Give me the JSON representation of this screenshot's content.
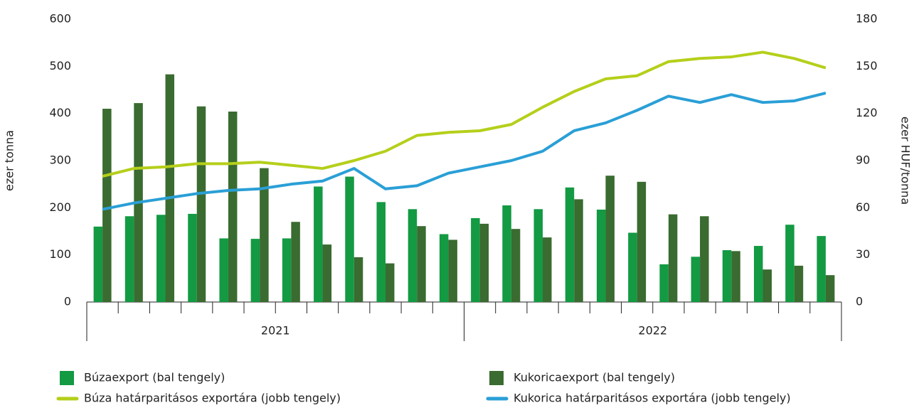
{
  "chart_data": {
    "type": "bar-line",
    "categories": [
      null,
      null,
      null,
      null,
      null,
      null,
      null,
      null,
      null,
      null,
      null,
      null,
      null,
      null,
      null,
      null,
      null,
      null,
      null,
      null,
      null,
      null,
      null,
      null
    ],
    "x_groups": [
      "2021",
      "2022"
    ],
    "ylabel": "ezer tonna",
    "y2label": "ezer HUF/tonna",
    "ylim": [
      0,
      600
    ],
    "yticks": [
      0,
      100,
      200,
      300,
      400,
      500,
      600
    ],
    "y2lim": [
      0,
      180
    ],
    "y2ticks": [
      0,
      30,
      60,
      90,
      120,
      150,
      180
    ],
    "grid": false,
    "series": [
      {
        "name": "Búzaexport (bal tengely)",
        "type": "bar",
        "axis": "y",
        "color": "#139a43",
        "values": [
          160,
          182,
          185,
          187,
          135,
          134,
          135,
          245,
          266,
          212,
          197,
          144,
          178,
          205,
          197,
          243,
          196,
          147,
          80,
          96,
          110,
          119,
          164,
          140
        ]
      },
      {
        "name": "Kukoricaexport (bal tengely)",
        "type": "bar",
        "axis": "y",
        "color": "#3a6b30",
        "values": [
          410,
          422,
          483,
          415,
          404,
          284,
          170,
          122,
          95,
          82,
          161,
          132,
          166,
          155,
          137,
          218,
          268,
          255,
          186,
          182,
          108,
          69,
          77,
          57
        ]
      },
      {
        "name": "Búza határparitásos exportára (jobb tengely)",
        "type": "line",
        "axis": "y2",
        "color": "#b5cf1a",
        "values": [
          80,
          85,
          86,
          88,
          88,
          89,
          87,
          85,
          90,
          96,
          106,
          108,
          109,
          113,
          124,
          134,
          142,
          144,
          153,
          155,
          156,
          159,
          155,
          149
        ]
      },
      {
        "name": "Kukorica határparitásos exportára (jobb tengely)",
        "type": "line",
        "axis": "y2",
        "color": "#2a9fd6",
        "values": [
          59,
          63,
          66,
          69,
          71,
          72,
          75,
          77,
          85,
          72,
          74,
          82,
          86,
          90,
          96,
          109,
          114,
          122,
          131,
          127,
          132,
          127,
          128,
          133
        ]
      }
    ]
  }
}
